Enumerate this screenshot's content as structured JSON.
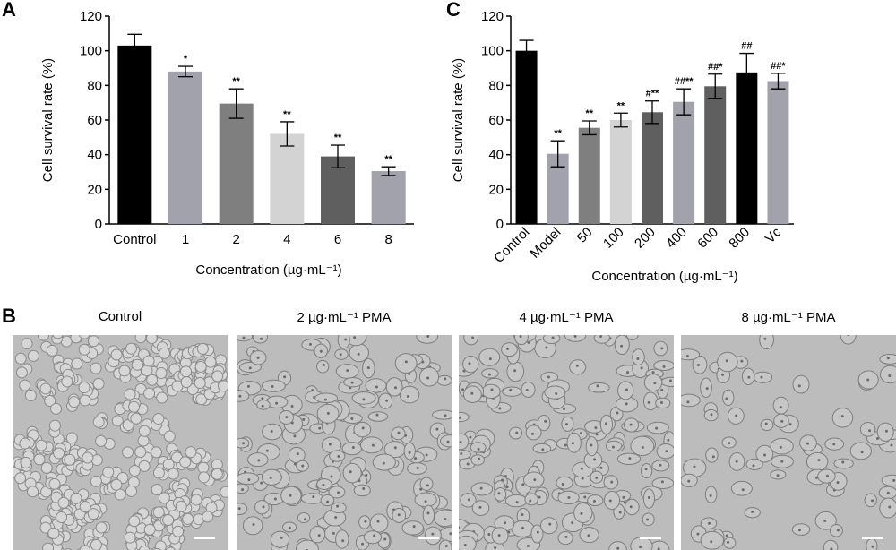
{
  "panels": {
    "A": {
      "letter": "A",
      "chart_data": {
        "type": "bar",
        "categories": [
          "Control",
          "1",
          "2",
          "4",
          "6",
          "8"
        ],
        "values": [
          103,
          88,
          69.5,
          52,
          39,
          30.5
        ],
        "errors": [
          6.5,
          3,
          8.5,
          7,
          6.5,
          2.5
        ],
        "significance": [
          "",
          "*",
          "**",
          "**",
          "**",
          "**"
        ],
        "colors": [
          "#000000",
          "#a2a2ac",
          "#7f7f7f",
          "#d3d3d3",
          "#5f5f5f",
          "#a2a2ac"
        ],
        "xlabel": "Concentration (µg·mL⁻¹)",
        "ylabel": "Cell survival rate (%)",
        "ylim": [
          0,
          120
        ],
        "yticks": [
          0,
          20,
          40,
          60,
          80,
          100,
          120
        ],
        "grid": false
      }
    },
    "C": {
      "letter": "C",
      "chart_data": {
        "type": "bar",
        "categories": [
          "Control",
          "Model",
          "50",
          "100",
          "200",
          "400",
          "600",
          "800",
          "Vc"
        ],
        "values": [
          100,
          40.5,
          55.5,
          60,
          64.5,
          70.5,
          79.5,
          87.5,
          82.5
        ],
        "errors": [
          6,
          7.5,
          4,
          4,
          6.5,
          7.5,
          7,
          11,
          4.5
        ],
        "significance": [
          "",
          "**",
          "**",
          "**",
          "#**",
          "##**",
          "##*",
          "##",
          "##*"
        ],
        "colors": [
          "#000000",
          "#a2a2ac",
          "#7f7f7f",
          "#d3d3d3",
          "#5f5f5f",
          "#a2a2ac",
          "#5f5f5f",
          "#000000",
          "#a2a2ac"
        ],
        "xlabel": "Concentration (µg·mL⁻¹)",
        "ylabel": "Cell survival rate (%)",
        "ylim": [
          0,
          120
        ],
        "yticks": [
          0,
          20,
          40,
          60,
          80,
          100,
          120
        ],
        "grid": false
      }
    },
    "B": {
      "letter": "B",
      "images": [
        {
          "title": "Control",
          "style": "clusters"
        },
        {
          "title": "2 µg·mL⁻¹ PMA",
          "style": "dense"
        },
        {
          "title": "4 µg·mL⁻¹ PMA",
          "style": "dense"
        },
        {
          "title": "8 µg·mL⁻¹ PMA",
          "style": "sparse"
        }
      ]
    }
  }
}
